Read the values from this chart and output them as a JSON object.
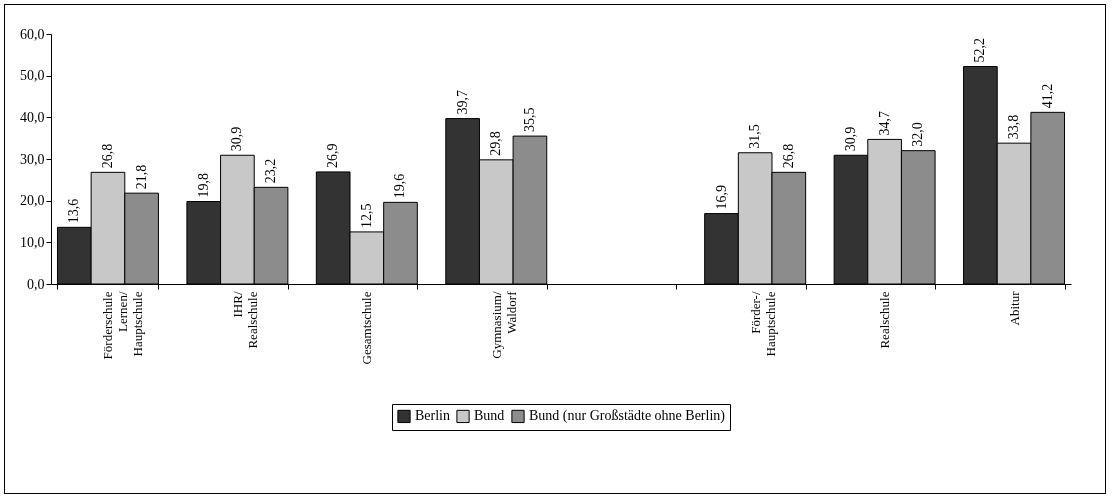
{
  "chart_data": {
    "type": "bar",
    "categories": [
      "Förderschule Lernen/ Hauptschule",
      "IHR/ Realschule",
      "Gesamtschule",
      "Gymnasium/ Waldorf",
      null,
      "Förder-/ Hauptschule",
      "Realschule",
      "Abitur"
    ],
    "series": [
      {
        "name": "Berlin",
        "color": "#333333",
        "values": [
          13.6,
          19.8,
          26.9,
          39.7,
          null,
          16.9,
          30.9,
          52.2
        ],
        "value_labels": [
          "13,6",
          "19,8",
          "26,9",
          "39,7",
          null,
          "16,9",
          "30,9",
          "52,2"
        ]
      },
      {
        "name": "Bund",
        "color": "#c8c8c8",
        "values": [
          26.8,
          30.9,
          12.5,
          29.8,
          null,
          31.5,
          34.7,
          33.8
        ],
        "value_labels": [
          "26,8",
          "30,9",
          "12,5",
          "29,8",
          null,
          "31,5",
          "34,7",
          "33,8"
        ]
      },
      {
        "name": "Bund (nur Großstädte ohne Berlin)",
        "color": "#8c8c8c",
        "values": [
          21.8,
          23.2,
          19.6,
          35.5,
          null,
          26.8,
          32.0,
          41.2
        ],
        "value_labels": [
          "21,8",
          "23,2",
          "19,6",
          "35,5",
          null,
          "26,8",
          "32,0",
          "41,2"
        ]
      }
    ],
    "ylim": [
      0,
      60
    ],
    "yticks": [
      {
        "value": 0,
        "label": "0,0"
      },
      {
        "value": 10,
        "label": "10,0"
      },
      {
        "value": 20,
        "label": "20,0"
      },
      {
        "value": 30,
        "label": "30,0"
      },
      {
        "value": 40,
        "label": "40,0"
      },
      {
        "value": 50,
        "label": "50,0"
      },
      {
        "value": 60,
        "label": "60,0"
      }
    ],
    "grid": false,
    "legend": "bottom"
  }
}
